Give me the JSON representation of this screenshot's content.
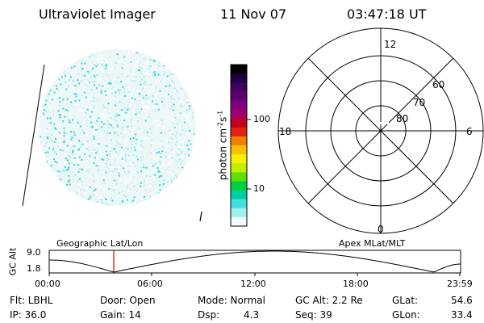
{
  "header": {
    "instrument": "Ultraviolet Imager",
    "date": "11 Nov 07",
    "time": "03:47:18 UT"
  },
  "colorbar": {
    "unit_label": "photon cm",
    "unit_exp1": "-2",
    "unit_s": "s",
    "unit_exp2": "-1",
    "tick_high": "100",
    "tick_low": "10",
    "colors": [
      "#000000",
      "#200040",
      "#400060",
      "#600070",
      "#80007f",
      "#a00070",
      "#c00020",
      "#e02010",
      "#f08000",
      "#f8c000",
      "#f8f000",
      "#c0f000",
      "#60e000",
      "#00d040",
      "#00d0a0",
      "#40e0e0",
      "#a0f0f0",
      "#f0fcfc"
    ]
  },
  "polar_plot": {
    "mlt_top": "12",
    "mlt_left": "18",
    "mlt_right": "6",
    "mlt_bottom": "0",
    "lat_60": "60",
    "lat_70": "70",
    "lat_80": "80"
  },
  "timeline": {
    "left_title": "Geographic Lat/Lon",
    "right_title": "Apex MLat/MLT",
    "axis_label": "GC Alt",
    "y_high": "9.0",
    "y_low": "1.8",
    "x_ticks": [
      "00:00",
      "06:00",
      "12:00",
      "18:00",
      "23:59"
    ],
    "marker_color": "#d00000"
  },
  "status": {
    "flt": "Flt: LBHL",
    "door": "Door: Open",
    "mode": "Mode: Normal",
    "gc_alt": "GC Alt: 2.2 Re",
    "glat_label": "GLat:",
    "glat_value": "54.6",
    "ip": "IP: 36.0",
    "gain": "Gain: 14",
    "dsp_label": "Dsp:",
    "dsp_value": "4.3",
    "seq": "Seq: 39",
    "glon_label": "GLon:",
    "glon_value": "33.4"
  }
}
